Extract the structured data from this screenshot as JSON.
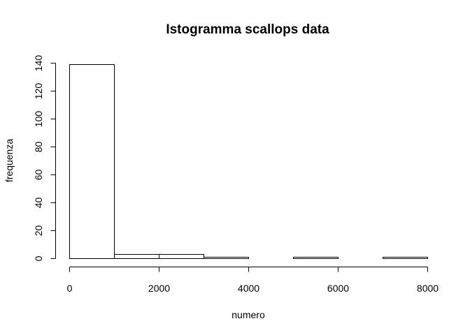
{
  "chart_data": {
    "type": "bar",
    "title": "Istogramma scallops data",
    "xlabel": "numero",
    "ylabel": "frequenza",
    "bins": [
      {
        "start": 0,
        "end": 1000,
        "count": 139
      },
      {
        "start": 1000,
        "end": 2000,
        "count": 3
      },
      {
        "start": 2000,
        "end": 3000,
        "count": 3
      },
      {
        "start": 3000,
        "end": 4000,
        "count": 1
      },
      {
        "start": 4000,
        "end": 5000,
        "count": 0
      },
      {
        "start": 5000,
        "end": 6000,
        "count": 1
      },
      {
        "start": 6000,
        "end": 7000,
        "count": 0
      },
      {
        "start": 7000,
        "end": 8000,
        "count": 1
      }
    ],
    "xlim": [
      0,
      8000
    ],
    "ylim": [
      0,
      140
    ],
    "x_ticks": [
      0,
      2000,
      4000,
      6000,
      8000
    ],
    "y_ticks": [
      0,
      20,
      40,
      60,
      80,
      100,
      120,
      140
    ],
    "grid": false,
    "colors": {
      "bar_fill": "#ffffff",
      "bar_stroke": "#000000"
    }
  }
}
